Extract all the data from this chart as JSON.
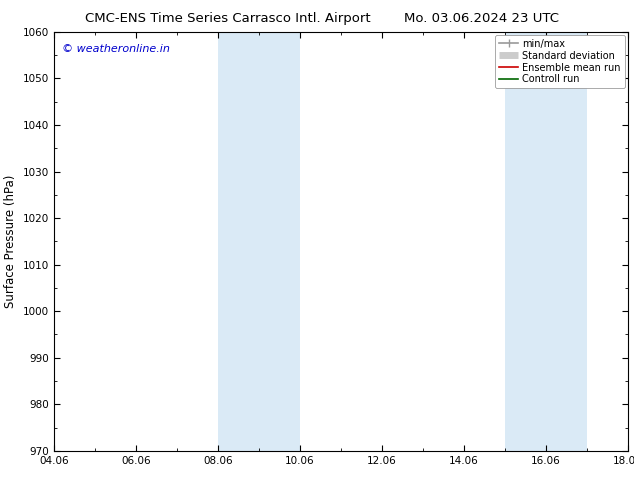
{
  "title_left": "CMC-ENS Time Series Carrasco Intl. Airport",
  "title_right": "Mo. 03.06.2024 23 UTC",
  "ylabel": "Surface Pressure (hPa)",
  "ylim": [
    970,
    1060
  ],
  "yticks": [
    970,
    980,
    990,
    1000,
    1010,
    1020,
    1030,
    1040,
    1050,
    1060
  ],
  "xlim_start": 0,
  "xlim_end": 14,
  "xtick_labels": [
    "04.06",
    "06.06",
    "08.06",
    "10.06",
    "12.06",
    "14.06",
    "16.06",
    "18.06"
  ],
  "xtick_positions": [
    0,
    2,
    4,
    6,
    8,
    10,
    12,
    14
  ],
  "shaded_bands": [
    {
      "xmin": 4,
      "xmax": 6,
      "color": "#daeaf6"
    },
    {
      "xmin": 11,
      "xmax": 13,
      "color": "#daeaf6"
    }
  ],
  "watermark": "© weatheronline.in",
  "watermark_color": "#0000cc",
  "legend_items": [
    {
      "label": "min/max",
      "color": "#999999",
      "lw": 1.2
    },
    {
      "label": "Standard deviation",
      "color": "#cccccc",
      "lw": 5
    },
    {
      "label": "Ensemble mean run",
      "color": "#cc0000",
      "lw": 1.2
    },
    {
      "label": "Controll run",
      "color": "#006600",
      "lw": 1.2
    }
  ],
  "bg_color": "#ffffff",
  "plot_bg_color": "#ffffff",
  "border_color": "#000000",
  "title_fontsize": 9.5,
  "tick_fontsize": 7.5,
  "ylabel_fontsize": 8.5,
  "watermark_fontsize": 8
}
